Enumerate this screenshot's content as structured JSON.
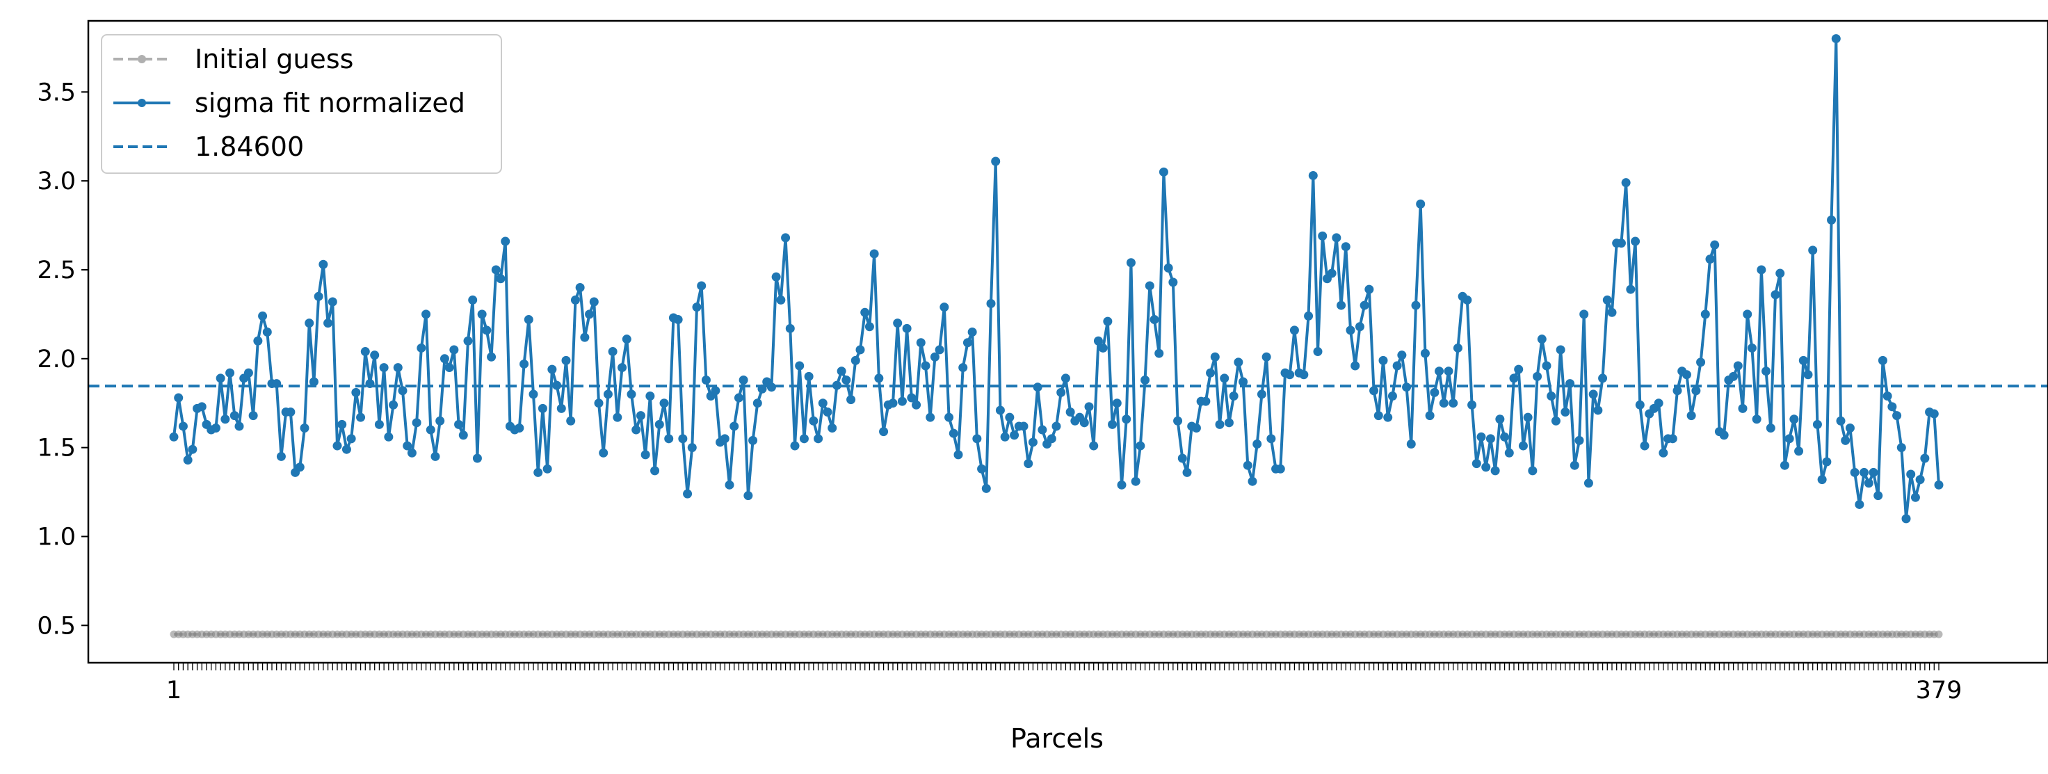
{
  "chart_data": {
    "type": "line",
    "title": "",
    "xlabel": "Parcels",
    "ylabel": "",
    "x_range": [
      1,
      379
    ],
    "x_tick_labels": [
      "1",
      "379"
    ],
    "ylim": [
      0.29,
      3.9
    ],
    "y_ticks": [
      0.5,
      1.0,
      1.5,
      2.0,
      2.5,
      3.0,
      3.5
    ],
    "y_tick_labels": [
      "0.5",
      "1.0",
      "1.5",
      "2.0",
      "2.5",
      "3.0",
      "3.5"
    ],
    "grid": false,
    "legend_position": "top-left",
    "series": [
      {
        "name": "Initial guess",
        "style": "dashed-with-markers",
        "color": "#b0b0b0",
        "marker_color": "#808080",
        "constant_value": 0.45,
        "count": 379
      },
      {
        "name": "sigma fit normalized",
        "style": "solid-with-markers",
        "color": "#1f77b4",
        "values": [
          1.56,
          1.78,
          1.62,
          1.43,
          1.49,
          1.72,
          1.73,
          1.63,
          1.6,
          1.61,
          1.89,
          1.66,
          1.92,
          1.68,
          1.62,
          1.89,
          1.92,
          1.68,
          2.1,
          2.24,
          2.15,
          1.86,
          1.86,
          1.45,
          1.7,
          1.7,
          1.36,
          1.39,
          1.61,
          2.2,
          1.87,
          2.35,
          2.53,
          2.2,
          2.32,
          1.51,
          1.63,
          1.49,
          1.55,
          1.81,
          1.67,
          2.04,
          1.86,
          2.02,
          1.63,
          1.95,
          1.56,
          1.74,
          1.95,
          1.82,
          1.51,
          1.47,
          1.64,
          2.06,
          2.25,
          1.6,
          1.45,
          1.65,
          2.0,
          1.95,
          2.05,
          1.63,
          1.57,
          2.1,
          2.33,
          1.44,
          2.25,
          2.16,
          2.01,
          2.5,
          2.45,
          2.66,
          1.62,
          1.6,
          1.61,
          1.97,
          2.22,
          1.8,
          1.36,
          1.72,
          1.38,
          1.94,
          1.85,
          1.72,
          1.99,
          1.65,
          2.33,
          2.4,
          2.12,
          2.25,
          2.32,
          1.75,
          1.47,
          1.8,
          2.04,
          1.67,
          1.95,
          2.11,
          1.8,
          1.6,
          1.68,
          1.46,
          1.79,
          1.37,
          1.63,
          1.75,
          1.55,
          2.23,
          2.22,
          1.55,
          1.24,
          1.5,
          2.29,
          2.41,
          1.88,
          1.79,
          1.82,
          1.53,
          1.55,
          1.29,
          1.62,
          1.78,
          1.88,
          1.23,
          1.54,
          1.75,
          1.83,
          1.87,
          1.84,
          2.46,
          2.33,
          2.68,
          2.17,
          1.51,
          1.96,
          1.55,
          1.9,
          1.65,
          1.55,
          1.75,
          1.7,
          1.61,
          1.85,
          1.93,
          1.88,
          1.77,
          1.99,
          2.05,
          2.26,
          2.18,
          2.59,
          1.89,
          1.59,
          1.74,
          1.75,
          2.2,
          1.76,
          2.17,
          1.78,
          1.74,
          2.09,
          1.96,
          1.67,
          2.01,
          2.05,
          2.29,
          1.67,
          1.58,
          1.46,
          1.95,
          2.09,
          2.15,
          1.55,
          1.38,
          1.27,
          2.31,
          3.11,
          1.71,
          1.56,
          1.67,
          1.57,
          1.62,
          1.62,
          1.41,
          1.53,
          1.84,
          1.6,
          1.52,
          1.55,
          1.62,
          1.81,
          1.89,
          1.7,
          1.65,
          1.67,
          1.64,
          1.73,
          1.51,
          2.1,
          2.06,
          2.21,
          1.63,
          1.75,
          1.29,
          1.66,
          2.54,
          1.31,
          1.51,
          1.88,
          2.41,
          2.22,
          2.03,
          3.05,
          2.51,
          2.43,
          1.65,
          1.44,
          1.36,
          1.62,
          1.61,
          1.76,
          1.76,
          1.92,
          2.01,
          1.63,
          1.89,
          1.64,
          1.79,
          1.98,
          1.87,
          1.4,
          1.31,
          1.52,
          1.8,
          2.01,
          1.55,
          1.38,
          1.38,
          1.92,
          1.91,
          2.16,
          1.92,
          1.91,
          2.24,
          3.03,
          2.04,
          2.69,
          2.45,
          2.48,
          2.68,
          2.3,
          2.63,
          2.16,
          1.96,
          2.18,
          2.3,
          2.39,
          1.82,
          1.68,
          1.99,
          1.67,
          1.79,
          1.96,
          2.02,
          1.84,
          1.52,
          2.3,
          2.87,
          2.03,
          1.68,
          1.81,
          1.93,
          1.75,
          1.93,
          1.75,
          2.06,
          2.35,
          2.33,
          1.74,
          1.41,
          1.56,
          1.39,
          1.55,
          1.37,
          1.66,
          1.56,
          1.47,
          1.89,
          1.94,
          1.51,
          1.67,
          1.37,
          1.9,
          2.11,
          1.96,
          1.79,
          1.65,
          2.05,
          1.7,
          1.86,
          1.4,
          1.54,
          2.25,
          1.3,
          1.8,
          1.71,
          1.89,
          2.33,
          2.26,
          2.65,
          2.65,
          2.99,
          2.39,
          2.66,
          1.74,
          1.51,
          1.69,
          1.72,
          1.75,
          1.47,
          1.55,
          1.55,
          1.82,
          1.93,
          1.91,
          1.68,
          1.82,
          1.98,
          2.25,
          2.56,
          2.64,
          1.59,
          1.57,
          1.88,
          1.9,
          1.96,
          1.72,
          2.25,
          2.06,
          1.66,
          2.5,
          1.93,
          1.61,
          2.36,
          2.48,
          1.4,
          1.55,
          1.66,
          1.48,
          1.99,
          1.91,
          2.61,
          1.63,
          1.32,
          1.42,
          2.78,
          3.8,
          1.65,
          1.54,
          1.61,
          1.36,
          1.18,
          1.36,
          1.3,
          1.36,
          1.23,
          1.99,
          1.79,
          1.73,
          1.68,
          1.5,
          1.1,
          1.35,
          1.22,
          1.32,
          1.44,
          1.7,
          1.69,
          1.29
        ]
      },
      {
        "name": "1.84600",
        "style": "dashed-horizontal",
        "color": "#1f77b4",
        "value": 1.846
      }
    ]
  }
}
